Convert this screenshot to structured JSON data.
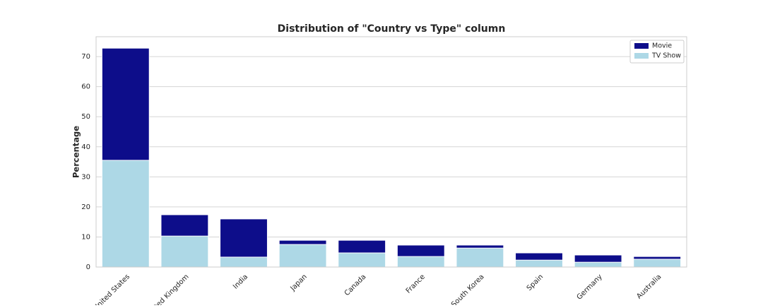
{
  "chart_data": {
    "type": "bar",
    "title": "Distribution of \"Country vs Type\" column",
    "y_label": "Percentage",
    "categories": [
      "United States",
      "United Kingdom",
      "India",
      "Japan",
      "Canada",
      "France",
      "South Korea",
      "Spain",
      "Germany",
      "Australia"
    ],
    "series": [
      {
        "name": "Movie",
        "color": "#0d0d8a",
        "values": [
          72.8,
          17.4,
          16.0,
          8.9,
          8.9,
          7.3,
          7.3,
          4.7,
          4.0,
          3.5
        ]
      },
      {
        "name": "TV Show",
        "color": "#add8e6",
        "values": [
          35.5,
          10.3,
          3.3,
          7.5,
          4.7,
          3.5,
          6.3,
          2.3,
          1.6,
          2.6
        ]
      }
    ],
    "ylim": [
      0,
      76.6
    ],
    "yticks": [
      0,
      10,
      20,
      30,
      40,
      50,
      60,
      70
    ],
    "grid": true,
    "legend": "upper right"
  }
}
